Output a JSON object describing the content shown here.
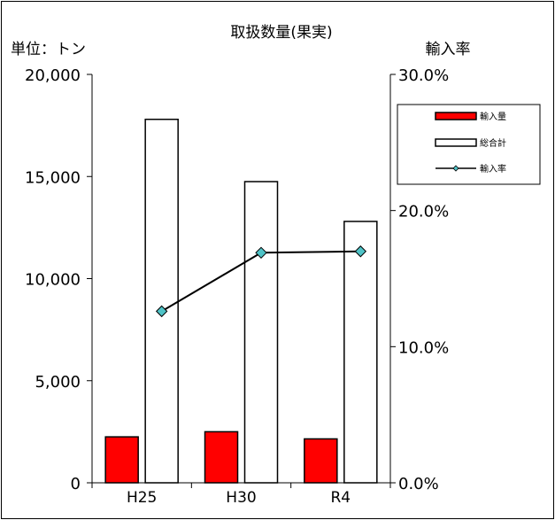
{
  "chart_data": {
    "type": "bar",
    "title": "取扱数量(果実)",
    "categories": [
      "H25",
      "H30",
      "R4"
    ],
    "series": [
      {
        "name": "輸入量",
        "kind": "bar",
        "axis": "left",
        "color": "#ff0000",
        "values": [
          2250,
          2500,
          2150
        ]
      },
      {
        "name": "総合計",
        "kind": "bar",
        "axis": "left",
        "color": "#ffffff",
        "values": [
          17800,
          14750,
          12800
        ]
      },
      {
        "name": "輸入率",
        "kind": "line",
        "axis": "right",
        "color": "#4fc3c7",
        "values": [
          12.6,
          16.9,
          17.0
        ]
      }
    ],
    "y_left": {
      "unit_label": "単位：トン",
      "range": [
        0,
        20000
      ],
      "ticks": [
        0,
        5000,
        10000,
        15000,
        20000
      ],
      "tick_labels": [
        "0",
        "5,000",
        "10,000",
        "15,000",
        "20,000"
      ]
    },
    "y_right": {
      "label": "輸入率",
      "range": [
        0,
        30
      ],
      "ticks": [
        0,
        10,
        20,
        30
      ],
      "tick_labels": [
        "0.0%",
        "10.0%",
        "20.0%",
        "30.0%"
      ]
    },
    "legend_position": "top-right",
    "grid": false
  }
}
